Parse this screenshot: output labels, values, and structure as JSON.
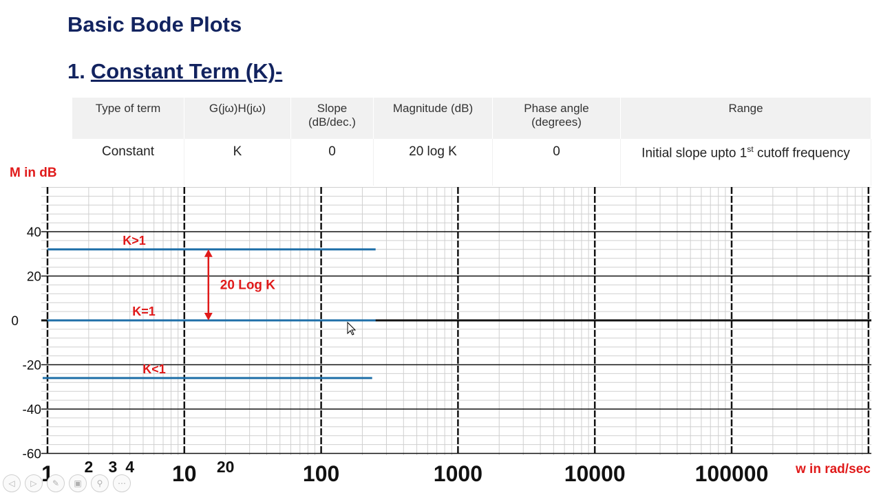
{
  "slide_title": "Basic Bode Plots",
  "section": {
    "number": "1.",
    "title": "Constant Term (K)-"
  },
  "table": {
    "headers": [
      "Type of term",
      "G(jω)H(jω)",
      "Slope\n(dB/dec.)",
      "Magnitude (dB)",
      "Phase angle\n(degrees)",
      "Range"
    ],
    "row": [
      "Constant",
      "K",
      "0",
      "20 log K",
      "0"
    ],
    "range_pre": "Initial slope upto 1",
    "range_sup": "st",
    "range_post": " cutoff frequency"
  },
  "chart_data": {
    "type": "line",
    "xscale": "log",
    "xlim": [
      1,
      1000000
    ],
    "ylim": [
      -60,
      60
    ],
    "ylabel": "M in dB",
    "xlabel": "w in rad/sec",
    "y_ticks": [
      "40",
      "20",
      "0",
      "-20",
      "-40",
      "-60"
    ],
    "x_ticks": [
      {
        "label": "1",
        "value": 1,
        "size": "big"
      },
      {
        "label": "2",
        "value": 2,
        "size": "small"
      },
      {
        "label": "3",
        "value": 3,
        "size": "small"
      },
      {
        "label": "4",
        "value": 4,
        "size": "small"
      },
      {
        "label": "10",
        "value": 10,
        "size": "big"
      },
      {
        "label": "20",
        "value": 20,
        "size": "small"
      },
      {
        "label": "100",
        "value": 100,
        "size": "big"
      },
      {
        "label": "1000",
        "value": 1000,
        "size": "big"
      },
      {
        "label": "10000",
        "value": 10000,
        "size": "big"
      },
      {
        "label": "100000",
        "value": 100000,
        "size": "big"
      }
    ],
    "series": [
      {
        "name": "K>1",
        "x": [
          1,
          250
        ],
        "y": [
          32,
          32
        ]
      },
      {
        "name": "K=1",
        "x": [
          1,
          250
        ],
        "y": [
          0,
          0
        ]
      },
      {
        "name": "K<1",
        "x": [
          1,
          250
        ],
        "y": [
          -26,
          -26
        ]
      }
    ],
    "annotation": {
      "text": "20 Log K",
      "x": 15,
      "y_from": 32,
      "y_to": 0
    },
    "grid": true,
    "colors": {
      "series": "#1f6fa8",
      "annotation": "#e01a1a",
      "grid": "#cfcfcf",
      "major": "#111111"
    }
  }
}
